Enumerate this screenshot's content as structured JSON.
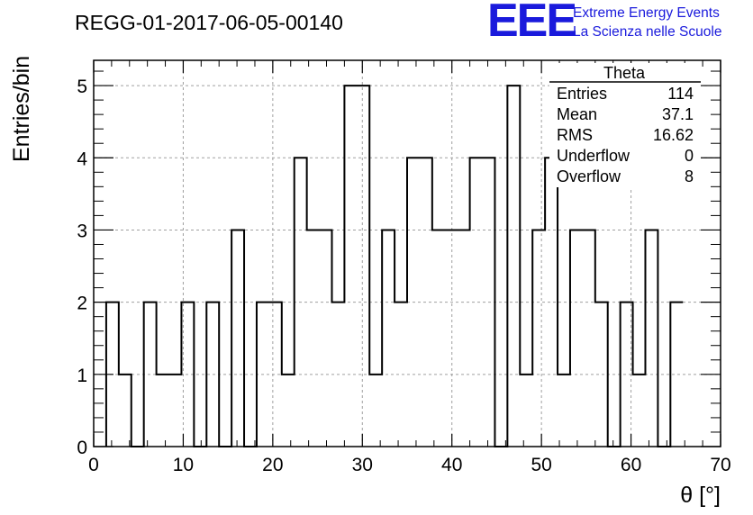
{
  "header": {
    "run_id": "REGG-01-2017-06-05-00140",
    "logo": "EEE",
    "logo_line1": "Extreme Energy Events",
    "logo_line2": "La Scienza nelle Scuole"
  },
  "stats_box": {
    "title": "Theta",
    "rows": [
      {
        "label": "Entries",
        "value": "114"
      },
      {
        "label": "Mean",
        "value": "37.1"
      },
      {
        "label": "RMS",
        "value": "16.62"
      },
      {
        "label": "Underflow",
        "value": "0"
      },
      {
        "label": "Overflow",
        "value": "8"
      }
    ]
  },
  "chart_data": {
    "type": "histogram",
    "title": "REGG-01-2017-06-05-00140",
    "xlabel": "θ [°]",
    "ylabel": "Entries/bin",
    "xlim": [
      0,
      70
    ],
    "ylim": [
      0,
      5.35
    ],
    "xticks": [
      0,
      10,
      20,
      30,
      40,
      50,
      60,
      70
    ],
    "yticks": [
      0,
      1,
      2,
      3,
      4,
      5
    ],
    "grid": true,
    "line_color": "#000000",
    "bin_width": 1.4,
    "bin_start": 1.4,
    "values": [
      2,
      1,
      0,
      2,
      1,
      1,
      2,
      0,
      2,
      0,
      3,
      0,
      2,
      2,
      1,
      4,
      3,
      3,
      2,
      5,
      5,
      1,
      3,
      2,
      4,
      4,
      3,
      3,
      3,
      4,
      4,
      0,
      5,
      1,
      3,
      4,
      1,
      3,
      3,
      2,
      0,
      2,
      1,
      3,
      0,
      2
    ]
  }
}
